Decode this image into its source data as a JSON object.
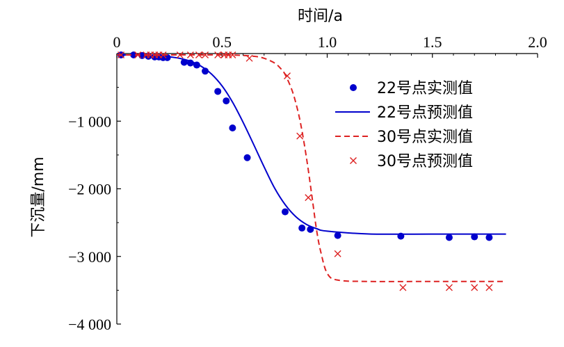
{
  "chart_data": {
    "type": "scatter",
    "xlabel": "时间/a",
    "ylabel": "下沉量/mm",
    "xlim": [
      0,
      2.0
    ],
    "ylim": [
      -4000,
      0
    ],
    "x_axis_position": "top",
    "grid": false,
    "xticks": [
      {
        "value": 0,
        "label": "0"
      },
      {
        "value": 0.5,
        "label": "0.5"
      },
      {
        "value": 1.0,
        "label": "1.0"
      },
      {
        "value": 1.5,
        "label": "1.5"
      },
      {
        "value": 2.0,
        "label": "2.0"
      }
    ],
    "yticks": [
      {
        "value": -1000,
        "label": "−1 000"
      },
      {
        "value": -2000,
        "label": "−2 000"
      },
      {
        "value": -3000,
        "label": "−3 000"
      },
      {
        "value": -4000,
        "label": "−4 000"
      }
    ],
    "legend_position": "right",
    "series": [
      {
        "name": "22号点实测值",
        "kind": "points",
        "marker": "dot",
        "color": "#0000cc",
        "x": [
          0.02,
          0.08,
          0.12,
          0.15,
          0.18,
          0.2,
          0.22,
          0.24,
          0.32,
          0.35,
          0.38,
          0.42,
          0.48,
          0.52,
          0.55,
          0.62,
          0.8,
          0.88,
          0.92,
          1.05,
          1.35,
          1.58,
          1.7,
          1.77
        ],
        "y": [
          -20,
          -20,
          -30,
          -40,
          -50,
          -50,
          -60,
          -60,
          -130,
          -140,
          -170,
          -260,
          -560,
          -700,
          -1100,
          -1540,
          -2340,
          -2580,
          -2600,
          -2690,
          -2700,
          -2720,
          -2710,
          -2720
        ]
      },
      {
        "name": "22号点预测值",
        "kind": "line",
        "line_style": "solid",
        "color": "#0000cc",
        "x": [
          0,
          0.1,
          0.2,
          0.25,
          0.3,
          0.35,
          0.4,
          0.45,
          0.5,
          0.55,
          0.6,
          0.65,
          0.7,
          0.75,
          0.8,
          0.85,
          0.9,
          0.95,
          1.0,
          1.2,
          1.5,
          1.85
        ],
        "y": [
          -20,
          -22,
          -33,
          -47,
          -72,
          -114,
          -186,
          -303,
          -478,
          -719,
          -1016,
          -1342,
          -1676,
          -1990,
          -2234,
          -2410,
          -2524,
          -2590,
          -2626,
          -2668,
          -2670,
          -2670
        ]
      },
      {
        "name": "30号点实测值",
        "kind": "line",
        "line_style": "dashed",
        "color": "#dd2222",
        "x": [
          0,
          0.2,
          0.4,
          0.55,
          0.65,
          0.7,
          0.75,
          0.78,
          0.8,
          0.83,
          0.85,
          0.87,
          0.89,
          0.91,
          0.93,
          0.95,
          0.97,
          1.0,
          1.05,
          1.2,
          1.5,
          1.85
        ],
        "y": [
          -20,
          -20,
          -20,
          -22,
          -40,
          -70,
          -140,
          -225,
          -310,
          -520,
          -720,
          -980,
          -1320,
          -1720,
          -2170,
          -2620,
          -2940,
          -3250,
          -3350,
          -3370,
          -3370,
          -3370
        ]
      },
      {
        "name": "30号点预测值",
        "kind": "points",
        "marker": "x",
        "color": "#dd2222",
        "x": [
          0.02,
          0.1,
          0.14,
          0.16,
          0.18,
          0.2,
          0.22,
          0.3,
          0.35,
          0.39,
          0.42,
          0.48,
          0.51,
          0.53,
          0.55,
          0.63,
          0.81,
          0.87,
          0.91,
          1.05,
          1.36,
          1.58,
          1.7,
          1.77
        ],
        "y": [
          -20,
          -20,
          -20,
          -20,
          -20,
          -20,
          -20,
          -20,
          -20,
          -20,
          -20,
          -20,
          -20,
          -20,
          -20,
          -70,
          -330,
          -1220,
          -2130,
          -2960,
          -3460,
          -3460,
          -3460,
          -3460
        ]
      }
    ]
  }
}
